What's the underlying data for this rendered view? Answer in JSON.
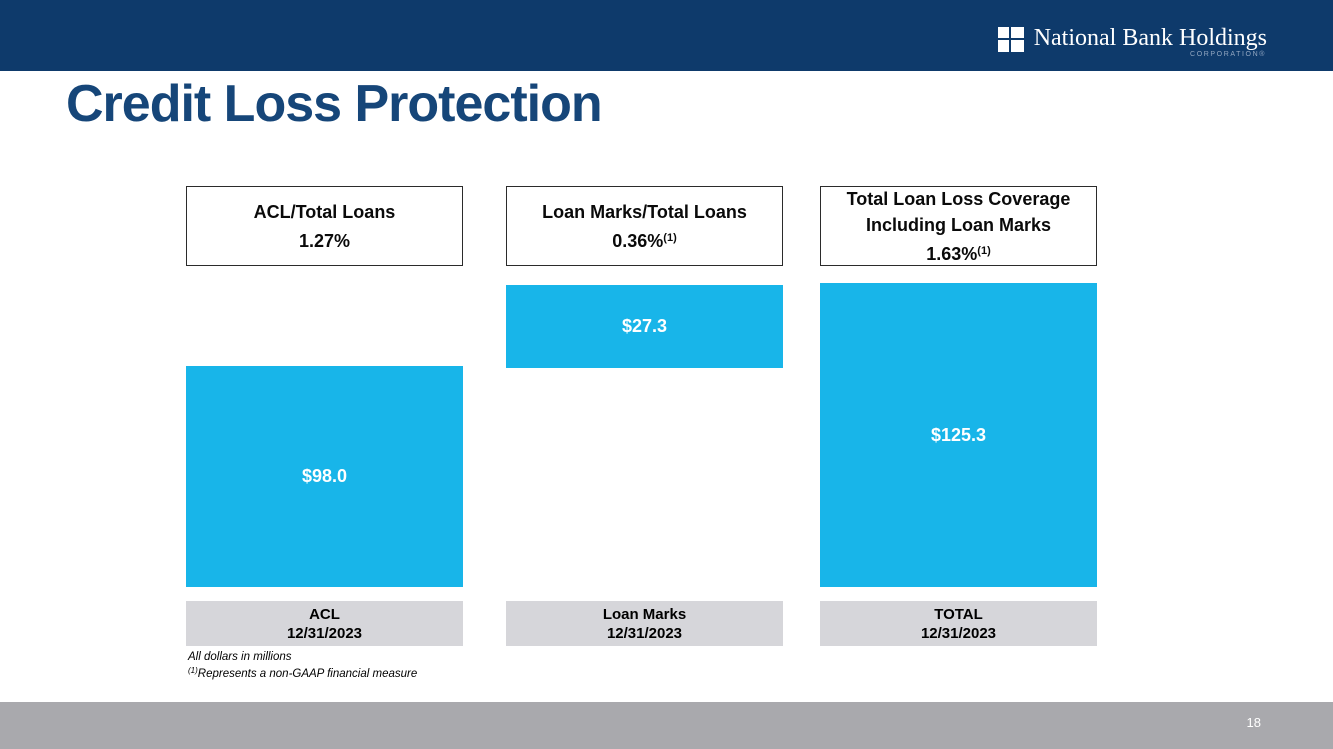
{
  "slide": {
    "title": "Credit Loss Protection",
    "page_number": "18"
  },
  "logo": {
    "name": "National Bank Holdings",
    "subtext": "CORPORATION®",
    "icon": "window-squares-icon"
  },
  "colors": {
    "banner_navy": "#0e3a6b",
    "title_navy": "#164679",
    "bar_cyan": "#18b5e9",
    "label_gray": "#d6d6da",
    "footer_gray": "#a9a9ad"
  },
  "columns": [
    {
      "header_line1": "ACL/Total Loans",
      "header_line2": "",
      "header_value": "1.27%",
      "header_value_sup": "",
      "bar_label": "$98.0",
      "label_title": "ACL",
      "label_date": "12/31/2023"
    },
    {
      "header_line1": "Loan Marks/Total Loans",
      "header_line2": "",
      "header_value": "0.36%",
      "header_value_sup": "(1)",
      "bar_label": "$27.3",
      "label_title": "Loan Marks",
      "label_date": "12/31/2023"
    },
    {
      "header_line1": "Total Loan Loss Coverage",
      "header_line2": "Including Loan Marks",
      "header_value": "1.63%",
      "header_value_sup": "(1)",
      "bar_label": "$125.3",
      "label_title": "TOTAL",
      "label_date": "12/31/2023"
    }
  ],
  "footnotes": {
    "line1": "All dollars in millions",
    "line2_sup": "(1)",
    "line2": "Represents a non-GAAP financial measure"
  },
  "chart_data": {
    "type": "bar",
    "title": "Credit Loss Protection",
    "categories": [
      "ACL 12/31/2023",
      "Loan Marks 12/31/2023",
      "TOTAL 12/31/2023"
    ],
    "values": [
      98.0,
      27.3,
      125.3
    ],
    "bar_labels": [
      "$98.0",
      "$27.3",
      "$125.3"
    ],
    "bar_color": "#18b5e9",
    "annotations": [
      "ACL/Total Loans 1.27%",
      "Loan Marks/Total Loans 0.36%(1)",
      "Total Loan Loss Coverage Including Loan Marks 1.63%(1)"
    ],
    "notes": [
      "All dollars in millions",
      "(1)Represents a non-GAAP financial measure"
    ],
    "units": "USD millions",
    "axes": "none",
    "grid": false,
    "legend": false
  }
}
